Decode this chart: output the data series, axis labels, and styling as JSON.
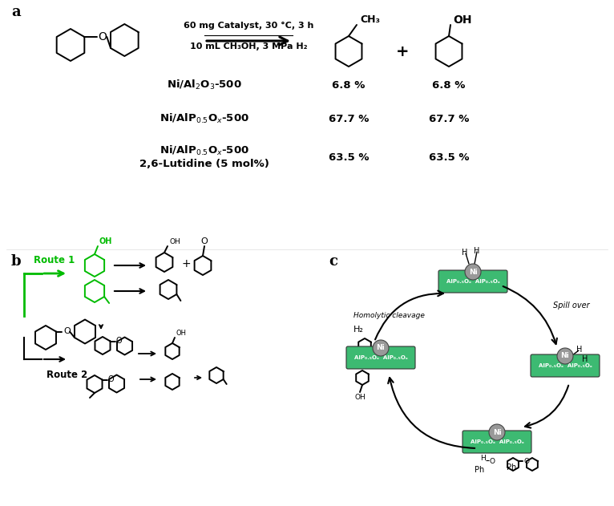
{
  "bg": "#ffffff",
  "green": "#3dba72",
  "gray_ni": "#999999",
  "dark_green": "#00bb00",
  "label_a": "a",
  "label_b": "b",
  "label_c": "c",
  "cond1": "60 mg Catalyst, 30 °C, 3 h",
  "cond2": "10 mL CH₃OH, 3 MPa H₂",
  "row_cats": [
    "Ni/Al$_2$O$_3$-500",
    "Ni/AlP$_{0.5}$O$_x$-500",
    "Ni/AlP$_{0.5}$O$_x$-500"
  ],
  "row_extras": [
    "",
    "",
    "2,6-Lutidine (5 mol%)"
  ],
  "yield1s": [
    "6.8 %",
    "67.7 %",
    "63.5 %"
  ],
  "yield2s": [
    "6.8 %",
    "67.7 %",
    "63.5 %"
  ],
  "route1": "Route 1",
  "route2": "Route 2",
  "spillover": "Spill over",
  "homolytic": "Homolytic cleavage",
  "h2": "H₂",
  "alp": "AlP₀.₅Oₓ  AlP₀.₅Oₓ",
  "ni": "Ni",
  "oh_label": "OH",
  "o_label": "O",
  "ch3_label": "CH₃",
  "plus": "+"
}
